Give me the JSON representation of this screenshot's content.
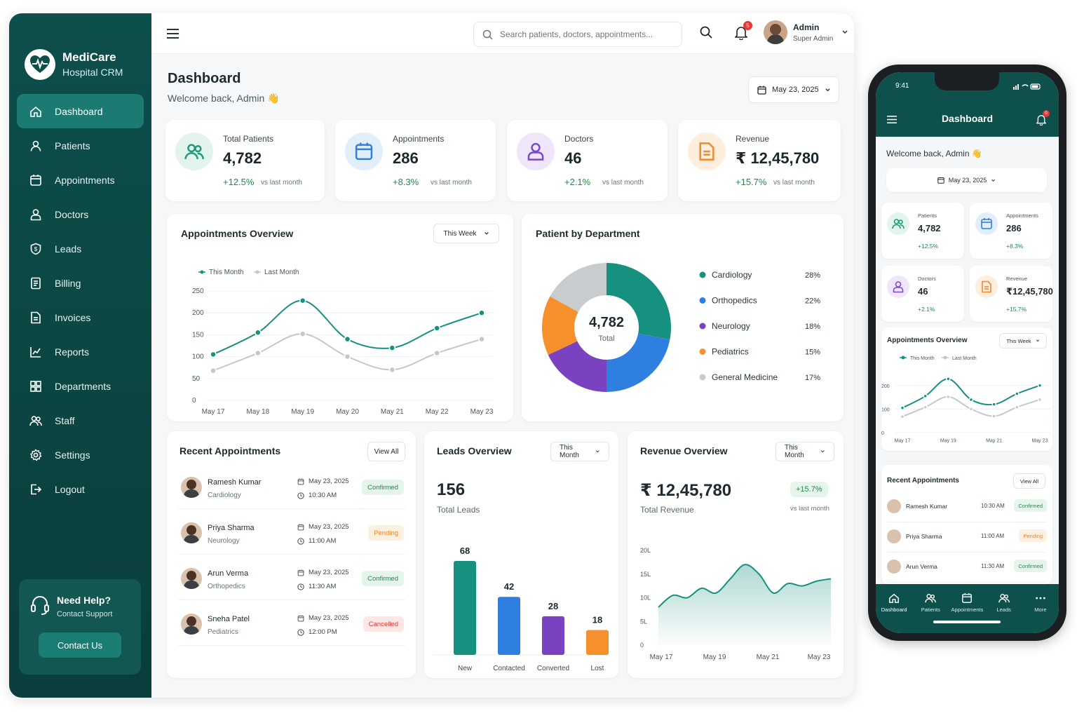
{
  "brand": {
    "name": "MediCare",
    "subtitle": "Hospital CRM"
  },
  "sidebar": {
    "items": [
      {
        "label": "Dashboard",
        "icon": "home-icon",
        "active": true
      },
      {
        "label": "Patients",
        "icon": "user-icon"
      },
      {
        "label": "Appointments",
        "icon": "calendar-icon"
      },
      {
        "label": "Doctors",
        "icon": "doctor-icon"
      },
      {
        "label": "Leads",
        "icon": "shield-icon"
      },
      {
        "label": "Billing",
        "icon": "billing-icon"
      },
      {
        "label": "Invoices",
        "icon": "invoice-icon"
      },
      {
        "label": "Reports",
        "icon": "chart-icon"
      },
      {
        "label": "Departments",
        "icon": "departments-icon"
      },
      {
        "label": "Staff",
        "icon": "staff-icon"
      },
      {
        "label": "Settings",
        "icon": "gear-icon"
      },
      {
        "label": "Logout",
        "icon": "logout-icon"
      }
    ],
    "help": {
      "title": "Need Help?",
      "subtitle": "Contact Support",
      "button": "Contact Us"
    }
  },
  "topbar": {
    "search_placeholder": "Search patients, doctors, appointments...",
    "notifications": "5",
    "user": {
      "name": "Admin",
      "role": "Super Admin"
    }
  },
  "page": {
    "title": "Dashboard",
    "welcome": "Welcome back, Admin 👋",
    "date": "May 23, 2025"
  },
  "stats": [
    {
      "label": "Total Patients",
      "value": "4,782",
      "change": "+12.5%",
      "note": "vs last month",
      "color": "#1f9a7a",
      "bg": "#e3f4ee"
    },
    {
      "label": "Appointments",
      "value": "286",
      "change": "+8.3%",
      "note": "vs last month",
      "color": "#2f7fe0",
      "bg": "#e3eefc"
    },
    {
      "label": "Doctors",
      "value": "46",
      "change": "+2.1%",
      "note": "vs last month",
      "color": "#7a4bc4",
      "bg": "#efe7f9"
    },
    {
      "label": "Revenue",
      "value": "₹ 12,45,780",
      "change": "+15.7%",
      "note": "vs last month",
      "color": "#f08a2a",
      "bg": "#fdeedd"
    }
  ],
  "appointments_overview": {
    "title": "Appointments Overview",
    "range": "This Week",
    "legend": [
      "This Month",
      "Last Month"
    ]
  },
  "department": {
    "title": "Patient by Department",
    "center_value": "4,782",
    "center_label": "Total"
  },
  "recent": {
    "title": "Recent Appointments",
    "view_all": "View All",
    "rows": [
      {
        "name": "Ramesh Kumar",
        "dept": "Cardiology",
        "date": "May 23, 2025",
        "time": "10:30 AM",
        "status": "Confirmed",
        "cls": "confirmed"
      },
      {
        "name": "Priya Sharma",
        "dept": "Neurology",
        "date": "May 23, 2025",
        "time": "11:00 AM",
        "status": "Pending",
        "cls": "pending"
      },
      {
        "name": "Arun Verma",
        "dept": "Orthopedics",
        "date": "May 23, 2025",
        "time": "11:30 AM",
        "status": "Confirmed",
        "cls": "confirmed"
      },
      {
        "name": "Sneha Patel",
        "dept": "Pediatrics",
        "date": "May 23, 2025",
        "time": "12:00 PM",
        "status": "Cancelled",
        "cls": "cancelled"
      }
    ]
  },
  "leads": {
    "title": "Leads Overview",
    "range": "This Month",
    "total": "156",
    "total_label": "Total Leads"
  },
  "revenue": {
    "title": "Revenue Overview",
    "range": "This Month",
    "total": "₹ 12,45,780",
    "total_label": "Total Revenue",
    "change": "+15.7%",
    "note": "vs last month"
  },
  "phone": {
    "time": "9:41",
    "title": "Dashboard",
    "notifications": "0",
    "welcome": "Welcome back, Admin 👋",
    "date": "May 23, 2025",
    "stats": [
      {
        "label": "Patients",
        "value": "4,782",
        "change": "+12.5%"
      },
      {
        "label": "Appointments",
        "value": "286",
        "change": "+8.3%"
      },
      {
        "label": "Doctors",
        "value": "46",
        "change": "+2.1%"
      },
      {
        "label": "Revenue",
        "value": "₹12,45,780",
        "change": "+15.7%"
      }
    ],
    "overview_title": "Appointments Overview",
    "overview_range": "This Week",
    "recent_title": "Recent Appointments",
    "view_all": "View All",
    "recent": [
      {
        "name": "Ramesh Kumar",
        "time": "10:30 AM",
        "status": "Confirmed",
        "cls": "confirmed"
      },
      {
        "name": "Priya Sharma",
        "time": "11:00 AM",
        "status": "Pending",
        "cls": "pending"
      },
      {
        "name": "Arun Verma",
        "time": "11:30 AM",
        "status": "Confirmed",
        "cls": "confirmed"
      }
    ],
    "tabs": [
      "Dashboard",
      "Patients",
      "Appointments",
      "Leads",
      "More"
    ]
  },
  "chart_data": [
    {
      "type": "line",
      "title": "Appointments Overview",
      "categories": [
        "May 17",
        "May 18",
        "May 19",
        "May 20",
        "May 21",
        "May 22",
        "May 23"
      ],
      "series": [
        {
          "name": "This Month",
          "values": [
            105,
            155,
            228,
            140,
            120,
            165,
            200
          ],
          "color": "#17917f"
        },
        {
          "name": "Last Month",
          "values": [
            68,
            108,
            152,
            100,
            70,
            108,
            140
          ],
          "color": "#c4c8cb"
        }
      ],
      "yticks": [
        "0",
        "50",
        "100",
        "150",
        "200",
        "250"
      ],
      "ylim": [
        0,
        250
      ]
    },
    {
      "type": "pie",
      "title": "Patient by Department",
      "slices": [
        {
          "label": "Cardiology",
          "value": 28,
          "display": "28%",
          "color": "#17917f"
        },
        {
          "label": "Orthopedics",
          "value": 22,
          "display": "22%",
          "color": "#2f7fe0"
        },
        {
          "label": "Neurology",
          "value": 18,
          "display": "18%",
          "color": "#7a42c0"
        },
        {
          "label": "Pediatrics",
          "value": 15,
          "display": "15%",
          "color": "#f6902d"
        },
        {
          "label": "General Medicine",
          "value": 17,
          "display": "17%",
          "color": "#c9cccf"
        }
      ]
    },
    {
      "type": "bar",
      "title": "Leads Overview",
      "categories": [
        "New",
        "Contacted",
        "Converted",
        "Lost"
      ],
      "values": [
        68,
        42,
        28,
        18
      ],
      "colors": [
        "#17917f",
        "#2f7fe0",
        "#7a42c0",
        "#f6902d"
      ]
    },
    {
      "type": "area",
      "title": "Revenue Overview",
      "categories": [
        "May 17",
        "May 19",
        "May 21",
        "May 23"
      ],
      "yticks": [
        "0",
        "5L",
        "10L",
        "15L",
        "20L"
      ],
      "x": [
        0,
        1,
        2,
        3,
        4,
        5,
        6,
        7,
        8,
        9,
        10,
        11,
        12
      ],
      "values": [
        8,
        10.5,
        10,
        12,
        11,
        14,
        17,
        15,
        11,
        13,
        12.5,
        13.5,
        14
      ],
      "ylim": [
        0,
        20
      ]
    }
  ]
}
